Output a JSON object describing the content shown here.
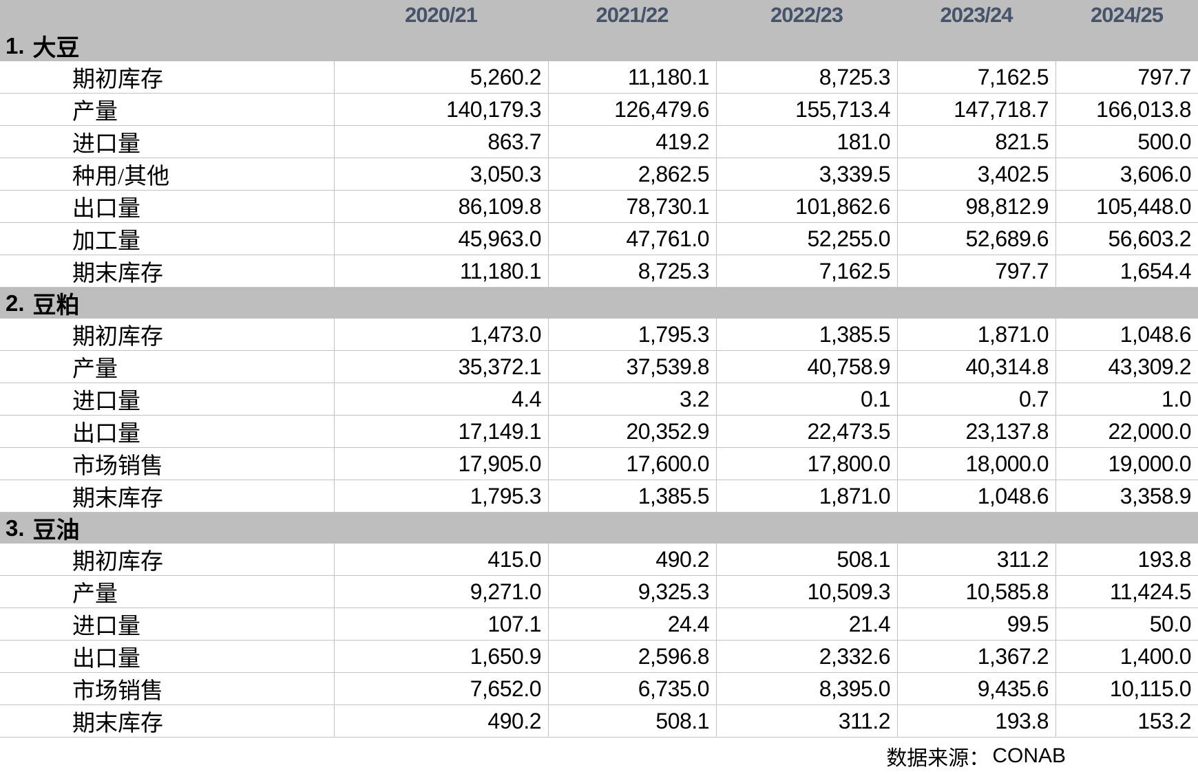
{
  "chart_data": {
    "type": "table",
    "year_headers": [
      "2020/21",
      "2021/22",
      "2022/23",
      "2023/24",
      "2024/25"
    ],
    "sections": [
      {
        "number": "1.",
        "name": "大豆",
        "rows": [
          {
            "label": "期初库存",
            "values": [
              "5,260.2",
              "11,180.1",
              "8,725.3",
              "7,162.5",
              "797.7"
            ]
          },
          {
            "label": "产量",
            "values": [
              "140,179.3",
              "126,479.6",
              "155,713.4",
              "147,718.7",
              "166,013.8"
            ]
          },
          {
            "label": "进口量",
            "values": [
              "863.7",
              "419.2",
              "181.0",
              "821.5",
              "500.0"
            ]
          },
          {
            "label": "种用/其他",
            "values": [
              "3,050.3",
              "2,862.5",
              "3,339.5",
              "3,402.5",
              "3,606.0"
            ]
          },
          {
            "label": "出口量",
            "values": [
              "86,109.8",
              "78,730.1",
              "101,862.6",
              "98,812.9",
              "105,448.0"
            ]
          },
          {
            "label": "加工量",
            "values": [
              "45,963.0",
              "47,761.0",
              "52,255.0",
              "52,689.6",
              "56,603.2"
            ]
          },
          {
            "label": "期末库存",
            "values": [
              "11,180.1",
              "8,725.3",
              "7,162.5",
              "797.7",
              "1,654.4"
            ]
          }
        ]
      },
      {
        "number": "2.",
        "name": "豆粕",
        "rows": [
          {
            "label": "期初库存",
            "values": [
              "1,473.0",
              "1,795.3",
              "1,385.5",
              "1,871.0",
              "1,048.6"
            ]
          },
          {
            "label": "产量",
            "values": [
              "35,372.1",
              "37,539.8",
              "40,758.9",
              "40,314.8",
              "43,309.2"
            ]
          },
          {
            "label": "进口量",
            "values": [
              "4.4",
              "3.2",
              "0.1",
              "0.7",
              "1.0"
            ]
          },
          {
            "label": "出口量",
            "values": [
              "17,149.1",
              "20,352.9",
              "22,473.5",
              "23,137.8",
              "22,000.0"
            ]
          },
          {
            "label": "市场销售",
            "values": [
              "17,905.0",
              "17,600.0",
              "17,800.0",
              "18,000.0",
              "19,000.0"
            ]
          },
          {
            "label": "期末库存",
            "values": [
              "1,795.3",
              "1,385.5",
              "1,871.0",
              "1,048.6",
              "3,358.9"
            ]
          }
        ]
      },
      {
        "number": "3.",
        "name": "豆油",
        "rows": [
          {
            "label": "期初库存",
            "values": [
              "415.0",
              "490.2",
              "508.1",
              "311.2",
              "193.8"
            ]
          },
          {
            "label": "产量",
            "values": [
              "9,271.0",
              "9,325.3",
              "10,509.3",
              "10,585.8",
              "11,424.5"
            ]
          },
          {
            "label": "进口量",
            "values": [
              "107.1",
              "24.4",
              "21.4",
              "99.5",
              "50.0"
            ]
          },
          {
            "label": "出口量",
            "values": [
              "1,650.9",
              "2,596.8",
              "2,332.6",
              "1,367.2",
              "1,400.0"
            ]
          },
          {
            "label": "市场销售",
            "values": [
              "7,652.0",
              "6,735.0",
              "8,395.0",
              "9,435.6",
              "10,115.0"
            ]
          },
          {
            "label": "期末库存",
            "values": [
              "490.2",
              "508.1",
              "311.2",
              "193.8",
              "153.2"
            ]
          }
        ]
      }
    ],
    "footer": {
      "source_label": "数据来源：",
      "source_value": "CONAB"
    }
  },
  "colors": {
    "band_gray": "#bebebe",
    "header_text": "#44546a",
    "grid_line": "#c3c3c3",
    "body_text": "#000000"
  }
}
